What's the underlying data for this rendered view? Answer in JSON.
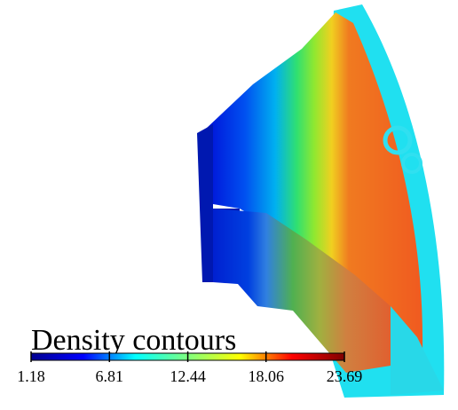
{
  "chart_data": {
    "type": "contour",
    "title": "Density contours",
    "colormap": "jet",
    "clim": [
      1.18,
      23.69
    ],
    "cticks": [
      1.18,
      6.81,
      12.44,
      18.06,
      23.69
    ]
  }
}
